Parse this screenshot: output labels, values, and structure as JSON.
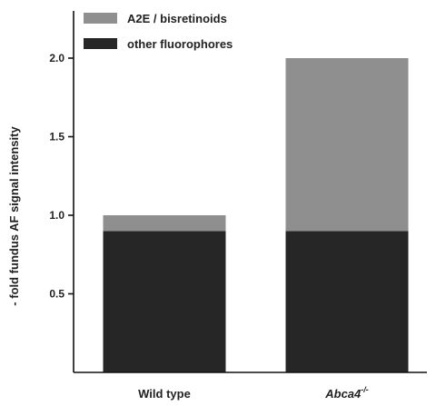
{
  "chart_data": {
    "type": "bar",
    "stacked": true,
    "categories": [
      "Wild type",
      "Abca4"
    ],
    "category_superscripts": [
      "",
      "-/-"
    ],
    "series": [
      {
        "name": "other fluorophores",
        "values": [
          0.9,
          0.9
        ],
        "color": "#262626"
      },
      {
        "name": "A2E / bisretinoids",
        "values": [
          0.1,
          1.1
        ],
        "color": "#8f8f8f"
      }
    ],
    "ylabel": "- fold fundus AF signal intensity",
    "xlabel": "",
    "title": "",
    "ylim": [
      0.0,
      2.0
    ],
    "yticks": [
      "0.5",
      "1.0",
      "1.5",
      "2.0"
    ],
    "legend_position": "top-left",
    "grid": false
  }
}
